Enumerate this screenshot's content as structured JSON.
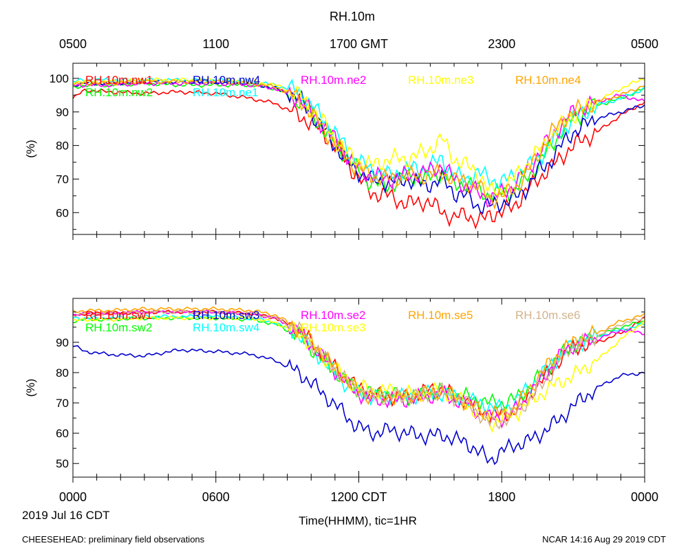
{
  "figure": {
    "title": "RH.10m",
    "date_label": "2019 Jul 16 CDT",
    "footer_left": "CHEESEHEAD: preliminary field observations",
    "footer_right": "NCAR 14:16 Aug 29 2019 CDT"
  },
  "top_axis": {
    "ticks": [
      0,
      6,
      12,
      18,
      24
    ],
    "labels": [
      "0500",
      "1100",
      "1700 GMT",
      "2300",
      "0500"
    ]
  },
  "bottom_axis": {
    "ticks": [
      0,
      6,
      12,
      18,
      24
    ],
    "labels": [
      "0000",
      "0600",
      "1200 CDT",
      "1800",
      "0000"
    ],
    "xlabel": "Time(HHMM), tic=1HR"
  },
  "chart_data": [
    {
      "type": "line",
      "panel": "top",
      "ylabel": "(%)",
      "xlim": [
        0,
        24
      ],
      "ylim": [
        53.5,
        104.5
      ],
      "yticks": [
        60,
        70,
        80,
        90,
        100
      ],
      "legend": {
        "placement": "top-left, two rows"
      },
      "series": [
        {
          "name": "RH.10m.nw1",
          "color": "#ff0000",
          "x": [
            0,
            0.5,
            1.5,
            3,
            4.5,
            6,
            7.5,
            8.5,
            9.5,
            10.5,
            11.2,
            11.8,
            12.5,
            13.3,
            14,
            14.8,
            15.5,
            16,
            16.5,
            17,
            17.5,
            18,
            18.5,
            19,
            19.5,
            20,
            20.5,
            21,
            22,
            23,
            24
          ],
          "y": [
            94,
            96.5,
            96,
            95.5,
            96,
            95.5,
            94,
            92.5,
            89,
            84,
            78,
            72,
            66,
            65,
            62.5,
            63.5,
            60.5,
            58,
            60,
            57,
            59.5,
            60,
            62,
            66,
            70,
            73,
            76.5,
            80,
            84,
            89,
            93
          ]
        },
        {
          "name": "RH.10m.nw2",
          "color": "#00ff00",
          "x": [
            0,
            0.5,
            1.5,
            3,
            4.5,
            6,
            7.5,
            8.5,
            9.5,
            10.5,
            11.2,
            11.8,
            12.5,
            13.3,
            14,
            14.8,
            15.5,
            16,
            16.5,
            17,
            17.5,
            18,
            18.5,
            19,
            19.5,
            20,
            20.5,
            21,
            22,
            23,
            24
          ],
          "y": [
            97,
            98,
            98,
            98.5,
            98,
            98,
            98,
            97,
            93.5,
            85,
            79,
            74,
            69,
            68,
            71,
            70,
            72,
            68,
            69,
            67,
            65,
            66,
            66.5,
            70,
            74,
            79,
            84,
            88,
            92,
            94,
            97
          ]
        },
        {
          "name": "RH.10m.nw4",
          "color": "#0000cd",
          "x": [
            0,
            0.5,
            1.5,
            3,
            4.5,
            6,
            7.5,
            8.5,
            9.5,
            10.5,
            11.2,
            11.8,
            12.5,
            13.3,
            14,
            14.8,
            15.5,
            16,
            16.5,
            17,
            17.5,
            18,
            18.5,
            19,
            19.5,
            20,
            20.5,
            21,
            22,
            23,
            24
          ],
          "y": [
            98,
            98.5,
            98.5,
            99,
            99,
            99,
            98.5,
            97,
            94,
            85,
            78,
            73,
            70,
            69,
            70,
            68,
            70,
            66,
            65,
            62,
            62,
            63,
            64,
            67,
            72,
            75,
            80,
            84,
            88,
            90,
            92
          ]
        },
        {
          "name": "RH.10m.ne1",
          "color": "#00ffff",
          "x": [
            0,
            0.5,
            1.5,
            3,
            4.5,
            6,
            7.5,
            8.5,
            9.5,
            10.5,
            11.2,
            11.8,
            12.5,
            13.3,
            14,
            14.8,
            15.5,
            16,
            16.5,
            17,
            17.5,
            18,
            18.5,
            19,
            19.5,
            20,
            20.5,
            21,
            22,
            23,
            24
          ],
          "y": [
            99,
            99.5,
            99.5,
            99.5,
            99.5,
            99.5,
            99,
            98,
            96,
            88,
            82,
            76,
            73,
            71,
            73,
            73,
            76,
            71,
            70,
            72,
            70,
            69,
            71,
            73,
            76,
            80,
            84,
            88,
            92,
            94,
            97
          ]
        },
        {
          "name": "RH.10m.ne2",
          "color": "#ff00ff",
          "x": [
            0,
            0.5,
            1.5,
            3,
            4.5,
            6,
            7.5,
            8.5,
            9.5,
            10.5,
            11.2,
            11.8,
            12.5,
            13.3,
            14,
            14.8,
            15.5,
            16,
            16.5,
            17,
            17.5,
            18,
            18.5,
            19,
            19.5,
            20,
            20.5,
            21,
            22,
            23,
            24
          ],
          "y": [
            98,
            98,
            98,
            98.5,
            98.5,
            98.5,
            98,
            97,
            94,
            86,
            80,
            74,
            71,
            70,
            71,
            72,
            74,
            70,
            68,
            66,
            64,
            66,
            68,
            72,
            77,
            82,
            86,
            90,
            93,
            95,
            93
          ]
        },
        {
          "name": "RH.10m.ne3",
          "color": "#ffff00",
          "x": [
            0,
            0.5,
            1.5,
            3,
            4.5,
            6,
            7.5,
            8.5,
            9.5,
            10.5,
            11.2,
            11.8,
            12.5,
            13.3,
            14,
            14.8,
            15.5,
            16,
            16.5,
            17,
            17.5,
            18,
            18.5,
            19,
            19.5,
            20,
            20.5,
            21,
            22,
            23,
            24
          ],
          "y": [
            99,
            99,
            99,
            99.5,
            99.5,
            99.5,
            99,
            98,
            95,
            87,
            80,
            76,
            74,
            76,
            76,
            78,
            82,
            76,
            74,
            72,
            66,
            67,
            70,
            74,
            78,
            82,
            86,
            89,
            93,
            97,
            100
          ]
        },
        {
          "name": "RH.10m.ne4",
          "color": "#ffa500",
          "x": [
            0,
            0.5,
            1.5,
            3,
            4.5,
            6,
            7.5,
            8.5,
            9.5,
            10.5,
            11.2,
            11.8,
            12.5,
            13.3,
            14,
            14.8,
            15.5,
            16,
            16.5,
            17,
            17.5,
            18,
            18.5,
            19,
            19.5,
            20,
            20.5,
            21,
            22,
            23,
            24
          ],
          "y": [
            98,
            98.5,
            98.5,
            99,
            99,
            99,
            98.5,
            97.5,
            94,
            85,
            79,
            74,
            71,
            70,
            71,
            71,
            72,
            70,
            69,
            68,
            64,
            65,
            67,
            71,
            77,
            83,
            87,
            90,
            93,
            95,
            98
          ]
        }
      ]
    },
    {
      "type": "line",
      "panel": "bottom",
      "ylabel": "(%)",
      "xlim": [
        0,
        24
      ],
      "ylim": [
        45.5,
        104.5
      ],
      "yticks": [
        50,
        60,
        70,
        80,
        90
      ],
      "legend": {
        "placement": "top-left, two rows"
      },
      "series": [
        {
          "name": "RH.10m.sw1",
          "color": "#ff0000",
          "x": [
            0,
            0.5,
            1.5,
            3,
            4.5,
            6,
            7.5,
            8.5,
            9.5,
            10.5,
            11.2,
            11.8,
            12.5,
            13.3,
            14,
            14.8,
            15.5,
            16,
            16.5,
            17,
            17.5,
            18,
            18.5,
            19,
            19.5,
            20,
            20.5,
            21,
            22,
            23,
            24
          ],
          "y": [
            99,
            99.5,
            99.5,
            100,
            100,
            100,
            99.5,
            98,
            94,
            86,
            80,
            76,
            73,
            72,
            72,
            74,
            75,
            72,
            71,
            68,
            66,
            66,
            67,
            71,
            76,
            80,
            85,
            88,
            90,
            93,
            98
          ]
        },
        {
          "name": "RH.10m.sw2",
          "color": "#00ff00",
          "x": [
            0,
            0.5,
            1.5,
            3,
            4.5,
            6,
            7.5,
            8.5,
            9.5,
            10.5,
            11.2,
            11.8,
            12.5,
            13.3,
            14,
            14.8,
            15.5,
            16,
            16.5,
            17,
            17.5,
            18,
            18.5,
            19,
            19.5,
            20,
            20.5,
            21,
            22,
            23,
            24
          ],
          "y": [
            97,
            97.5,
            97.5,
            98,
            98,
            98,
            97.5,
            96,
            92,
            84,
            79,
            75,
            73,
            73,
            72,
            73,
            74,
            73,
            72,
            71,
            70,
            70,
            71,
            74,
            78,
            82,
            86,
            89,
            92,
            95,
            97
          ]
        },
        {
          "name": "RH.10m.sw3",
          "color": "#0000cd",
          "x": [
            0,
            0.5,
            1.5,
            3,
            4.5,
            6,
            7.5,
            8.5,
            9.5,
            10.5,
            11.2,
            11.8,
            12.5,
            13.3,
            14,
            14.8,
            15.5,
            16,
            16.5,
            17,
            17.5,
            18,
            18.5,
            19,
            19.5,
            20,
            20.5,
            21,
            22,
            23,
            24
          ],
          "y": [
            89,
            87,
            86,
            85.5,
            87.5,
            87,
            86,
            84,
            80,
            73,
            68,
            63,
            60,
            61,
            60,
            59,
            59.5,
            58,
            57,
            54,
            51,
            54,
            56,
            57,
            59,
            62,
            65,
            69,
            75,
            79,
            80
          ]
        },
        {
          "name": "RH.10m.sw4",
          "color": "#00ffff",
          "x": [
            0,
            0.5,
            1.5,
            3,
            4.5,
            6,
            7.5,
            8.5,
            9.5,
            10.5,
            11.2,
            11.8,
            12.5,
            13.3,
            14,
            14.8,
            15.5,
            16,
            16.5,
            17,
            17.5,
            18,
            18.5,
            19,
            19.5,
            20,
            20.5,
            21,
            22,
            23,
            24
          ],
          "y": [
            98,
            98,
            98,
            98.5,
            98.5,
            98.5,
            98,
            96.5,
            92.5,
            84,
            78,
            74,
            72,
            72,
            72,
            73,
            73,
            72,
            71,
            70,
            69,
            68,
            70,
            74,
            78,
            82,
            86,
            89,
            92,
            94,
            96
          ]
        },
        {
          "name": "RH.10m.se2",
          "color": "#ff00ff",
          "x": [
            0,
            0.5,
            1.5,
            3,
            4.5,
            6,
            7.5,
            8.5,
            9.5,
            10.5,
            11.2,
            11.8,
            12.5,
            13.3,
            14,
            14.8,
            15.5,
            16,
            16.5,
            17,
            17.5,
            18,
            18.5,
            19,
            19.5,
            20,
            20.5,
            21,
            22,
            23,
            24
          ],
          "y": [
            99,
            99.5,
            99.5,
            100,
            100,
            100,
            99.5,
            98,
            93.5,
            85,
            79,
            74,
            71,
            71,
            71,
            72,
            73,
            71,
            70,
            67,
            65,
            65,
            67,
            71,
            76,
            81,
            86,
            89,
            91,
            94,
            93
          ]
        },
        {
          "name": "RH.10m.se3",
          "color": "#ffff00",
          "x": [
            0,
            0.5,
            1.5,
            3,
            4.5,
            6,
            7.5,
            8.5,
            9.5,
            10.5,
            11.2,
            11.8,
            12.5,
            13.3,
            14,
            14.8,
            15.5,
            16,
            16.5,
            17,
            17.5,
            18,
            18.5,
            19,
            19.5,
            20,
            20.5,
            21,
            22,
            23,
            24
          ],
          "y": [
            97,
            97.5,
            97.5,
            98,
            98,
            98,
            98,
            96.5,
            93,
            85,
            80,
            76,
            74,
            74,
            73,
            73,
            74,
            72,
            70,
            66,
            63,
            65,
            66,
            69,
            72,
            75,
            77,
            79,
            84,
            91,
            97
          ]
        },
        {
          "name": "RH.10m.se5",
          "color": "#ffa500",
          "x": [
            0,
            0.5,
            1.5,
            3,
            4.5,
            6,
            7.5,
            8.5,
            9.5,
            10.5,
            11.2,
            11.8,
            12.5,
            13.3,
            14,
            14.8,
            15.5,
            16,
            16.5,
            17,
            17.5,
            18,
            18.5,
            19,
            19.5,
            20,
            20.5,
            21,
            22,
            23,
            24
          ],
          "y": [
            100,
            100.5,
            100.5,
            101,
            101,
            101,
            100.5,
            99,
            94.5,
            86,
            80,
            75,
            72,
            72,
            72,
            73,
            74,
            72,
            70,
            68,
            67,
            66,
            68,
            73,
            78,
            83,
            87,
            90,
            93,
            97,
            99
          ]
        },
        {
          "name": "RH.10m.se6",
          "color": "#d2b48c",
          "x": [
            0,
            0.5,
            1.5,
            3,
            4.5,
            6,
            7.5,
            8.5,
            9.5,
            10.5,
            11.2,
            11.8,
            12.5,
            13.3,
            14,
            14.8,
            15.5,
            16,
            16.5,
            17,
            17.5,
            18,
            18.5,
            19,
            19.5,
            20,
            20.5,
            21,
            22,
            23,
            24
          ],
          "y": [
            99,
            99.5,
            99.5,
            100,
            100,
            100,
            99.5,
            98,
            94,
            85.5,
            79.5,
            75,
            72,
            72,
            72,
            73,
            74,
            72,
            70,
            67,
            63,
            64,
            66,
            70,
            74,
            79,
            85,
            89,
            92,
            96,
            98
          ]
        }
      ]
    }
  ]
}
